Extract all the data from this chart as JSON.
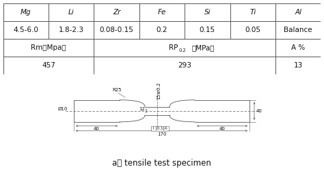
{
  "table": {
    "header_row1": [
      "Mg",
      "Li",
      "Zr",
      "Fe",
      "Si",
      "Ti",
      "Al"
    ],
    "header_row2": [
      "4.5-6.0",
      "1.8-2.3",
      "0.08-0.15",
      "0.2",
      "0.15",
      "0.05",
      "Balance"
    ],
    "prop_header_1": "Rm（Mpa）",
    "prop_header_2_pre": "RP",
    "prop_header_2_sub": "0.2",
    "prop_header_2_post": "（MPa）",
    "prop_header_3": "A %",
    "prop_val_1": "457",
    "prop_val_2": "293",
    "prop_val_3": "13"
  },
  "drawing": {
    "caption": "a） tensile test specimen"
  },
  "bg_color": "#ffffff",
  "line_color": "#555555",
  "text_color": "#111111",
  "dim_color": "#555555",
  "font_size_table": 7.5,
  "font_size_caption": 8.5,
  "font_size_dim": 5.0
}
